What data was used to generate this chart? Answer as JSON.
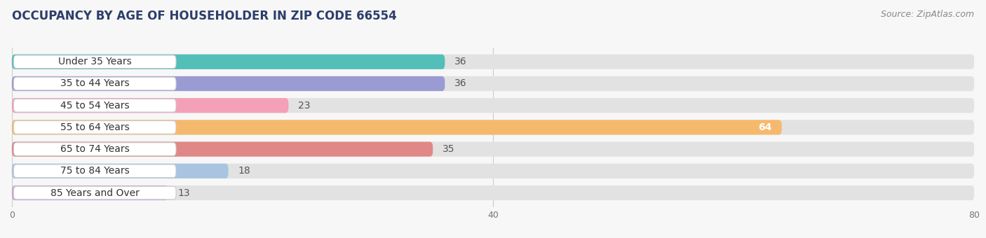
{
  "title": "OCCUPANCY BY AGE OF HOUSEHOLDER IN ZIP CODE 66554",
  "source": "Source: ZipAtlas.com",
  "categories": [
    "Under 35 Years",
    "35 to 44 Years",
    "45 to 54 Years",
    "55 to 64 Years",
    "65 to 74 Years",
    "75 to 84 Years",
    "85 Years and Over"
  ],
  "values": [
    36,
    36,
    23,
    64,
    35,
    18,
    13
  ],
  "bar_colors": [
    "#52bfb8",
    "#9b9bd4",
    "#f4a0b8",
    "#f5b96e",
    "#e08888",
    "#a8c4e0",
    "#c9a8d4"
  ],
  "xlim": [
    0,
    80
  ],
  "xticks": [
    0,
    40,
    80
  ],
  "background_color": "#f7f7f7",
  "bar_bg_color": "#e2e2e2",
  "title_color": "#2c3e6b",
  "title_fontsize": 12,
  "source_fontsize": 9,
  "label_fontsize": 10,
  "value_fontsize": 10,
  "bar_height": 0.68
}
